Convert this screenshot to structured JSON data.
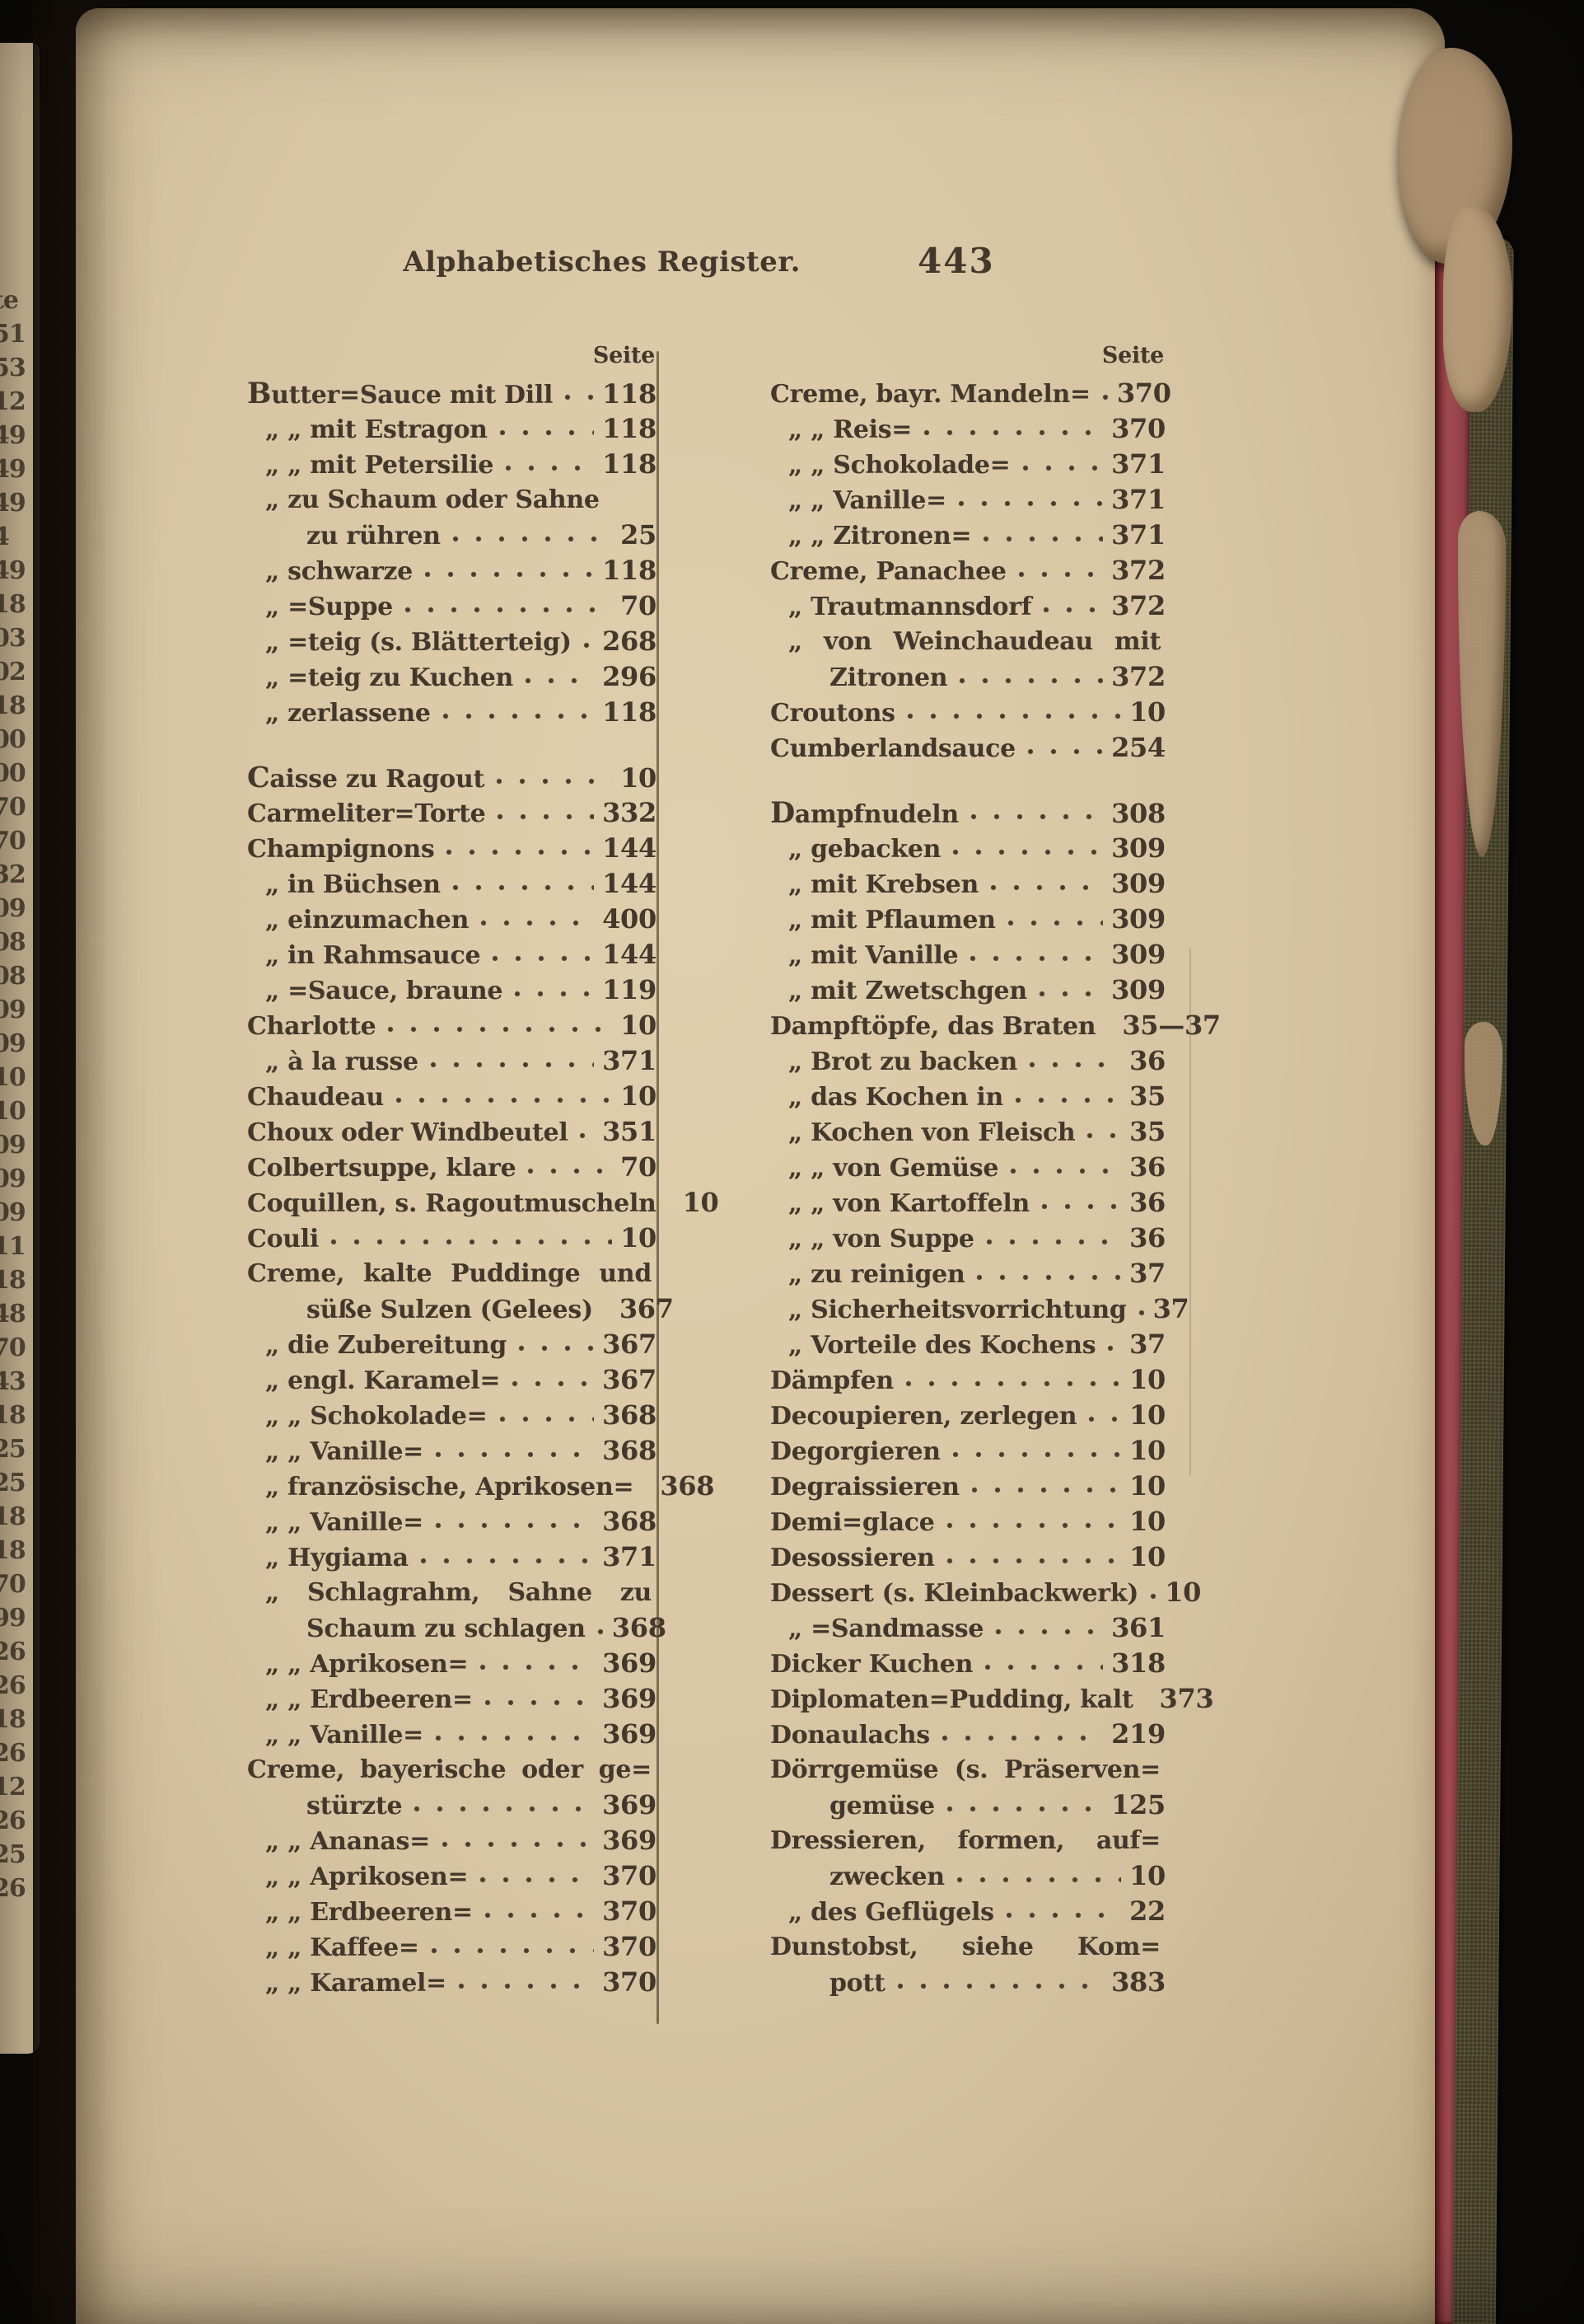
{
  "header": {
    "title": "Alphabetisches Register.",
    "page_number": "443"
  },
  "column_headers": {
    "left": "Seite",
    "right": "Seite"
  },
  "colors": {
    "ink": "#43382b",
    "paper": "#d7c4a2",
    "fore_edge_red": "#9c4348",
    "cover_olive": "#3c3926"
  },
  "facing_page_edge_texts": [
    "te",
    "51",
    "53",
    "12",
    "49",
    "49",
    "49",
    "4",
    "49",
    "18",
    "03",
    "02",
    "18",
    "00",
    "00",
    "70",
    "70",
    "32",
    "09",
    "08",
    "08",
    "09",
    "09",
    "10",
    "10",
    "09",
    "09",
    "09",
    "11",
    "18",
    "48",
    "70",
    "43",
    "18",
    "25",
    "25",
    "18",
    "18",
    "70",
    "99",
    "26",
    "26",
    "18",
    "26",
    "12",
    "26",
    "25",
    "26"
  ],
  "columns": {
    "left": [
      {
        "t": "Butter=Sauce mit Dill",
        "p": "118",
        "i": 0,
        "lead": true
      },
      {
        "t": "„ „ mit Estragon",
        "p": "118",
        "i": 1
      },
      {
        "t": "„ „ mit Petersilie",
        "p": "118",
        "i": 1
      },
      {
        "t": "„ zu Schaum oder Sahne",
        "i": 1
      },
      {
        "t": "zu rühren",
        "p": "25",
        "i": 2
      },
      {
        "t": "„ schwarze",
        "p": "118",
        "i": 1
      },
      {
        "t": "„ =Suppe",
        "p": "70",
        "i": 1
      },
      {
        "t": "„ =teig (s. Blätterteig)",
        "p": "268",
        "i": 1
      },
      {
        "t": "„ =teig zu Kuchen",
        "p": "296",
        "i": 1
      },
      {
        "t": "„ zerlassene",
        "p": "118",
        "i": 1
      },
      {
        "t": "Caisse zu Ragout",
        "p": "10",
        "i": 0,
        "lead": true,
        "gap": true
      },
      {
        "t": "Carmeliter=Torte",
        "p": "332",
        "i": 0
      },
      {
        "t": "Champignons",
        "p": "144",
        "i": 0
      },
      {
        "t": "„ in Büchsen",
        "p": "144",
        "i": 1
      },
      {
        "t": "„ einzumachen",
        "p": "400",
        "i": 1
      },
      {
        "t": "„ in Rahmsauce",
        "p": "144",
        "i": 1
      },
      {
        "t": "„ =Sauce, braune",
        "p": "119",
        "i": 1
      },
      {
        "t": "Charlotte",
        "p": "10",
        "i": 0
      },
      {
        "t": "„ à la russe",
        "p": "371",
        "i": 1
      },
      {
        "t": "Chaudeau",
        "p": "10",
        "i": 0
      },
      {
        "t": "Choux oder Windbeutel",
        "p": "351",
        "i": 0
      },
      {
        "t": "Colbertsuppe, klare",
        "p": "70",
        "i": 0
      },
      {
        "t": "Coquillen, s. Ragoutmuscheln",
        "p": "10",
        "i": 0,
        "d": false
      },
      {
        "t": "Couli",
        "p": "10",
        "i": 0
      },
      {
        "t": "Creme, kalte Puddinge und",
        "i": 0,
        "j": true
      },
      {
        "t": "süße Sulzen (Gelees)",
        "p": "367",
        "i": 2,
        "d": false
      },
      {
        "t": "„ die Zubereitung",
        "p": "367",
        "i": 1
      },
      {
        "t": "„ engl. Karamel=",
        "p": "367",
        "i": 1
      },
      {
        "t": "„ „ Schokolade=",
        "p": "368",
        "i": 1
      },
      {
        "t": "„ „ Vanille=",
        "p": "368",
        "i": 1
      },
      {
        "t": "„ französische, Aprikosen=",
        "p": "368",
        "i": 1,
        "d": false
      },
      {
        "t": "„ „ Vanille=",
        "p": "368",
        "i": 1
      },
      {
        "t": "„ Hygiama",
        "p": "371",
        "i": 1
      },
      {
        "t": "„ Schlagrahm, Sahne zu",
        "i": 1,
        "j": true
      },
      {
        "t": "Schaum zu schlagen",
        "p": "368",
        "i": 2
      },
      {
        "t": "„ „ Aprikosen=",
        "p": "369",
        "i": 1
      },
      {
        "t": "„ „ Erdbeeren=",
        "p": "369",
        "i": 1
      },
      {
        "t": "„ „ Vanille=",
        "p": "369",
        "i": 1
      },
      {
        "t": "Creme, bayerische oder ge=",
        "i": 0,
        "j": true
      },
      {
        "t": "stürzte",
        "p": "369",
        "i": 2
      },
      {
        "t": "„ „ Ananas=",
        "p": "369",
        "i": 1
      },
      {
        "t": "„ „ Aprikosen=",
        "p": "370",
        "i": 1
      },
      {
        "t": "„ „ Erdbeeren=",
        "p": "370",
        "i": 1
      },
      {
        "t": "„ „ Kaffee=",
        "p": "370",
        "i": 1
      },
      {
        "t": "„ „ Karamel=",
        "p": "370",
        "i": 1
      }
    ],
    "right": [
      {
        "t": "Creme, bayr. Mandeln=",
        "p": "370",
        "i": 0
      },
      {
        "t": "„ „ Reis=",
        "p": "370",
        "i": 1
      },
      {
        "t": "„ „ Schokolade=",
        "p": "371",
        "i": 1
      },
      {
        "t": "„ „ Vanille=",
        "p": "371",
        "i": 1
      },
      {
        "t": "„ „ Zitronen=",
        "p": "371",
        "i": 1
      },
      {
        "t": "Creme, Panachee",
        "p": "372",
        "i": 0
      },
      {
        "t": "„ Trautmannsdorf",
        "p": "372",
        "i": 1
      },
      {
        "t": "„ von Weinchaudeau mit",
        "i": 1,
        "j": true
      },
      {
        "t": "Zitronen",
        "p": "372",
        "i": 2
      },
      {
        "t": "Croutons",
        "p": "10",
        "i": 0
      },
      {
        "t": "Cumberlandsauce",
        "p": "254",
        "i": 0
      },
      {
        "t": "Dampfnudeln",
        "p": "308",
        "i": 0,
        "lead": true,
        "gap": true
      },
      {
        "t": "„ gebacken",
        "p": "309",
        "i": 1
      },
      {
        "t": "„ mit Krebsen",
        "p": "309",
        "i": 1
      },
      {
        "t": "„ mit Pflaumen",
        "p": "309",
        "i": 1
      },
      {
        "t": "„ mit Vanille",
        "p": "309",
        "i": 1
      },
      {
        "t": "„ mit Zwetschgen",
        "p": "309",
        "i": 1
      },
      {
        "t": "Dampftöpfe, das Braten",
        "p": "35—37",
        "i": 0,
        "d": false
      },
      {
        "t": "„ Brot zu backen",
        "p": "36",
        "i": 1
      },
      {
        "t": "„ das Kochen in",
        "p": "35",
        "i": 1
      },
      {
        "t": "„ Kochen von Fleisch",
        "p": "35",
        "i": 1
      },
      {
        "t": "„ „ von Gemüse",
        "p": "36",
        "i": 1
      },
      {
        "t": "„ „ von Kartoffeln",
        "p": "36",
        "i": 1
      },
      {
        "t": "„ „ von Suppe",
        "p": "36",
        "i": 1
      },
      {
        "t": "„ zu reinigen",
        "p": "37",
        "i": 1
      },
      {
        "t": "„ Sicherheitsvorrichtung",
        "p": "37",
        "i": 1
      },
      {
        "t": "„ Vorteile des Kochens",
        "p": "37",
        "i": 1
      },
      {
        "t": "Dämpfen",
        "p": "10",
        "i": 0
      },
      {
        "t": "Decoupieren, zerlegen",
        "p": "10",
        "i": 0
      },
      {
        "t": "Degorgieren",
        "p": "10",
        "i": 0
      },
      {
        "t": "Degraissieren",
        "p": "10",
        "i": 0
      },
      {
        "t": "Demi=glace",
        "p": "10",
        "i": 0
      },
      {
        "t": "Desossieren",
        "p": "10",
        "i": 0
      },
      {
        "t": "Dessert (s. Kleinbackwerk)",
        "p": "10",
        "i": 0
      },
      {
        "t": "„ =Sandmasse",
        "p": "361",
        "i": 1
      },
      {
        "t": "Dicker Kuchen",
        "p": "318",
        "i": 0
      },
      {
        "t": "Diplomaten=Pudding, kalt",
        "p": "373",
        "i": 0,
        "d": false
      },
      {
        "t": "Donaulachs",
        "p": "219",
        "i": 0
      },
      {
        "t": "Dörrgemüse (s. Präserven=",
        "i": 0,
        "j": true
      },
      {
        "t": "gemüse",
        "p": "125",
        "i": 2
      },
      {
        "t": "Dressieren, formen, auf=",
        "i": 0,
        "j": true
      },
      {
        "t": "zwecken",
        "p": "10",
        "i": 2
      },
      {
        "t": "„ des Geflügels",
        "p": "22",
        "i": 1
      },
      {
        "t": "Dunstobst, siehe Kom=",
        "i": 0,
        "j": true
      },
      {
        "t": "pott",
        "p": "383",
        "i": 2
      }
    ]
  }
}
